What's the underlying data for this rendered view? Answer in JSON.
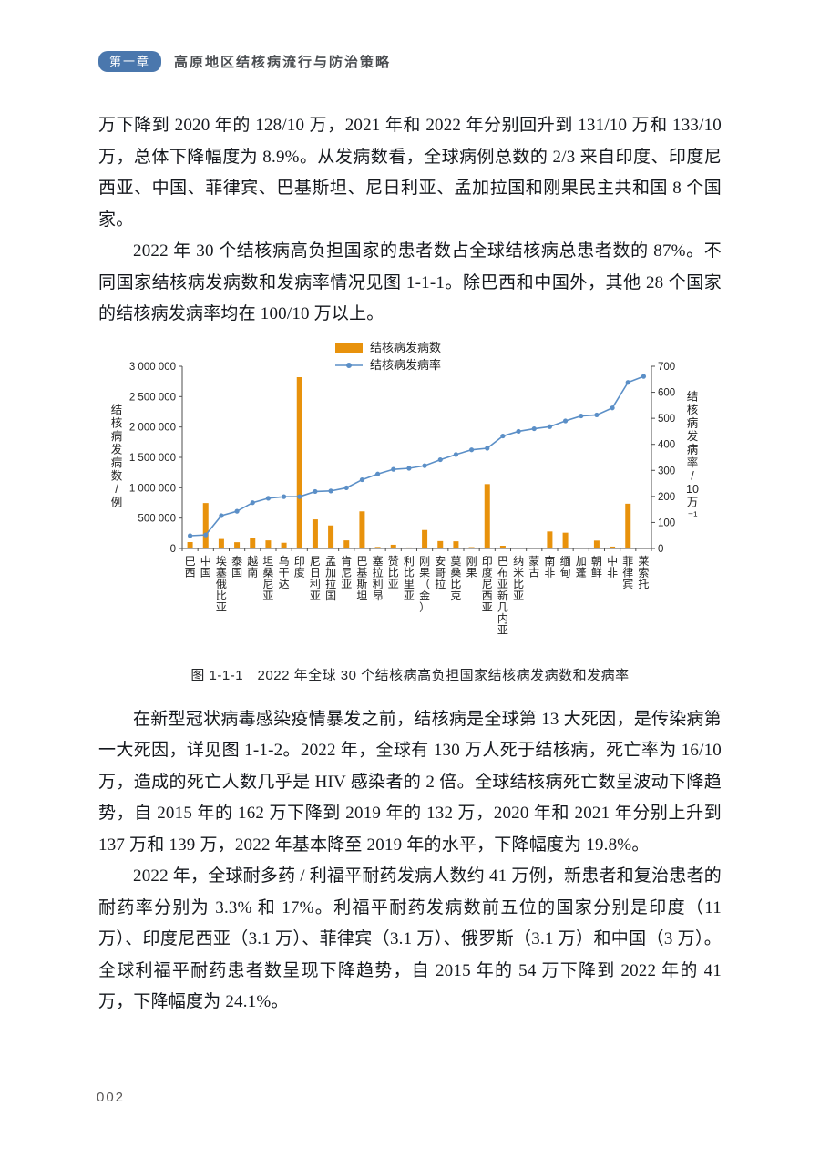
{
  "header": {
    "chapter_badge": "第一章",
    "chapter_title": "高原地区结核病流行与防治策略"
  },
  "paragraphs": {
    "p1": "万下降到 2020 年的 128/10 万，2021 年和 2022 年分别回升到 131/10 万和 133/10 万，总体下降幅度为 8.9%。从发病数看，全球病例总数的 2/3 来自印度、印度尼西亚、中国、菲律宾、巴基斯坦、尼日利亚、孟加拉国和刚果民主共和国 8 个国家。",
    "p2": "2022 年 30 个结核病高负担国家的患者数占全球结核病总患者数的 87%。不同国家结核病发病数和发病率情况见图 1-1-1。除巴西和中国外，其他 28 个国家的结核病发病率均在 100/10 万以上。",
    "p3": "在新型冠状病毒感染疫情暴发之前，结核病是全球第 13 大死因，是传染病第一大死因，详见图 1-1-2。2022 年，全球有 130 万人死于结核病，死亡率为 16/10 万，造成的死亡人数几乎是 HIV 感染者的 2 倍。全球结核病死亡数呈波动下降趋势，自 2015 年的 162 万下降到 2019 年的 132 万，2020 年和 2021 年分别上升到 137 万和 139 万，2022 年基本降至 2019 年的水平，下降幅度为 19.8%。",
    "p4": "2022 年，全球耐多药 / 利福平耐药发病人数约 41 万例，新患者和复治患者的耐药率分别为 3.3% 和 17%。利福平耐药发病数前五位的国家分别是印度（11 万）、印度尼西亚（3.1 万）、菲律宾（3.1 万）、俄罗斯（3.1 万）和中国（3 万）。全球利福平耐药患者数呈现下降趋势，自 2015 年的 54 万下降到 2022 年的 41 万，下降幅度为 24.1%。"
  },
  "figure": {
    "caption": "图 1-1-1　2022 年全球 30 个结核病高负担国家结核病发病数和发病率"
  },
  "footer": {
    "page_number": "002"
  },
  "colors": {
    "accent_blue": "#4A77AD",
    "bar_orange": "#E8920C",
    "line_blue": "#5B8FC7"
  },
  "chart_data": {
    "type": "bar+line",
    "title": "",
    "grid": false,
    "legend_position": "top-center",
    "categories": [
      "巴西",
      "中国",
      "埃塞俄比亚",
      "泰国",
      "越南",
      "坦桑尼亚",
      "乌干达",
      "印度",
      "尼日利亚",
      "孟加拉国",
      "肯尼亚",
      "巴基斯坦",
      "塞拉利昂",
      "赞比亚",
      "利比里亚",
      "刚果（金）",
      "安哥拉",
      "莫桑比克",
      "刚果",
      "印度尼西亚",
      "巴布亚新几内亚",
      "纳米比亚",
      "蒙古",
      "南非",
      "缅甸",
      "加蓬",
      "朝鲜",
      "中非",
      "菲律宾",
      "莱索托"
    ],
    "series": [
      {
        "name": "结核病发病数",
        "type": "bar",
        "axis": "left",
        "color": "#E8920C",
        "values": [
          105000,
          748000,
          156000,
          103000,
          172000,
          133000,
          94000,
          2820000,
          479000,
          379000,
          133000,
          611000,
          25000,
          61000,
          16000,
          304000,
          122000,
          118000,
          22000,
          1060000,
          45000,
          12000,
          15000,
          280000,
          260000,
          13000,
          130000,
          31000,
          737000,
          15000
        ]
      },
      {
        "name": "结核病发病率",
        "type": "line",
        "axis": "right",
        "color": "#5B8FC7",
        "values": [
          49,
          52,
          126,
          143,
          176,
          193,
          199,
          199,
          219,
          221,
          233,
          264,
          286,
          304,
          308,
          318,
          341,
          361,
          379,
          385,
          432,
          450,
          460,
          468,
          490,
          509,
          513,
          540,
          638,
          661
        ]
      }
    ],
    "left_axis": {
      "label": "结核病发病数/例",
      "min": 0,
      "max": 3000000,
      "tick_interval": 500000
    },
    "right_axis": {
      "label": "结核病发病率/10万⁻¹",
      "min": 0,
      "max": 700,
      "tick_interval": 100
    }
  }
}
